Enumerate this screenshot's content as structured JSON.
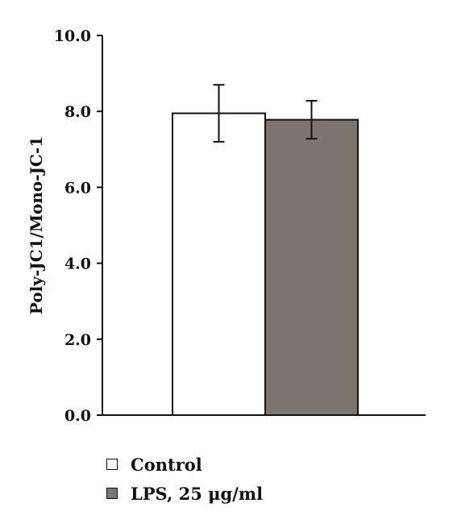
{
  "chart_data": {
    "type": "bar",
    "categories": [
      "Control",
      "LPS, 25 μg/ml"
    ],
    "values": [
      7.95,
      7.78
    ],
    "errors": [
      0.75,
      0.5
    ],
    "ylabel": "Poly-JC1/Mono-JC-1",
    "ylim": [
      0,
      10
    ],
    "yticks": [
      0,
      2,
      4,
      6,
      8,
      10
    ],
    "ytick_labels": [
      "0.0",
      "2.0",
      "4.0",
      "6.0",
      "8.0",
      "10.0"
    ],
    "grid": false,
    "legend_position": "bottom-left",
    "colors": [
      "#ffffff",
      "#7d7572"
    ],
    "edge_color": "#111111",
    "legend": [
      {
        "label": "Control",
        "color": "#ffffff"
      },
      {
        "label": "LPS, 25 μg/ml",
        "color": "#7d7572"
      }
    ]
  }
}
